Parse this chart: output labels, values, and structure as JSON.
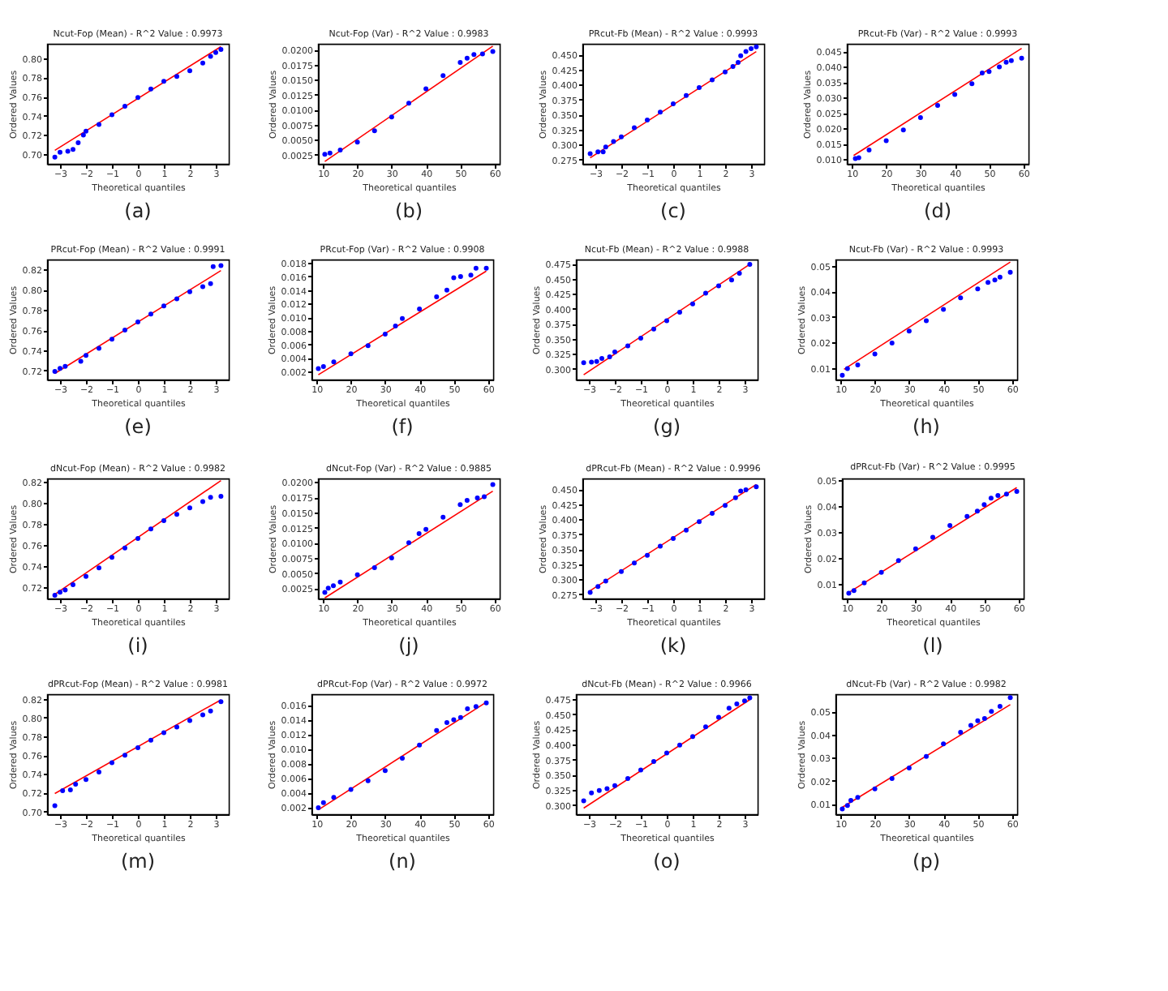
{
  "chart_data": [
    {
      "type": "scatter",
      "title": "Ncut-Fop (Mean)  - R^2 Value : 0.9973",
      "xlabel": "Theoretical quantiles",
      "ylabel": "Ordered Values",
      "annotations": [
        "(a)"
      ],
      "marker": "circle",
      "xlim": [
        -3.5,
        3.5
      ],
      "xticks": [
        {
          "value": -3,
          "label": "−3"
        },
        {
          "value": -2,
          "label": "−2"
        },
        {
          "value": -1,
          "label": "−1"
        },
        0,
        1,
        2,
        3
      ],
      "ylim": [
        0.69,
        0.815
      ],
      "yticks": [
        {
          "value": 0.7,
          "label": "0.70"
        },
        0.72,
        0.74,
        0.76,
        0.78,
        {
          "value": 0.8,
          "label": "0.80"
        }
      ],
      "series": [
        {
          "type": "scatter",
          "color": "#0000ff",
          "x": [
            -3.2,
            -3.0,
            -2.7,
            -2.5,
            -2.3,
            -2.1,
            -2.0,
            -1.5,
            -1.0,
            -0.5,
            0,
            0.5,
            1.0,
            1.5,
            2.0,
            2.5,
            2.8,
            3.0,
            3.2
          ],
          "values": [
            0.697,
            0.702,
            0.703,
            0.705,
            0.712,
            0.72,
            0.724,
            0.731,
            0.741,
            0.75,
            0.759,
            0.768,
            0.776,
            0.781,
            0.787,
            0.795,
            0.802,
            0.806,
            0.809
          ]
        },
        {
          "type": "line",
          "color": "#ff0000",
          "x": [
            -3.2,
            3.2
          ],
          "values": [
            0.704,
            0.812
          ],
          "marker": "none"
        }
      ]
    },
    {
      "type": "scatter",
      "title": "Ncut-Fop (Var)  - R^2 Value : 0.9983",
      "xlabel": "Theoretical quantiles",
      "ylabel": "Ordered Values",
      "annotations": [
        "(b)"
      ],
      "marker": "circle",
      "xlim": [
        8.5,
        61.5
      ],
      "xticks": [
        10,
        20,
        30,
        40,
        50,
        60
      ],
      "ylim": [
        0.001,
        0.021
      ],
      "yticks": [
        0.0025,
        {
          "value": 0.005,
          "label": "0.0050"
        },
        0.0075,
        {
          "value": 0.01,
          "label": "0.0100"
        },
        0.0125,
        {
          "value": 0.015,
          "label": "0.0150"
        },
        0.0175,
        {
          "value": 0.02,
          "label": "0.0200"
        }
      ],
      "series": [
        {
          "type": "scatter",
          "color": "#0000ff",
          "x": [
            10.5,
            12,
            15,
            20,
            25,
            30,
            35,
            40,
            45,
            50,
            52,
            54,
            56.5,
            59.5
          ],
          "values": [
            0.0026,
            0.0028,
            0.0033,
            0.0046,
            0.0065,
            0.0088,
            0.0111,
            0.0135,
            0.0157,
            0.0179,
            0.0186,
            0.0192,
            0.0193,
            0.0197
          ]
        },
        {
          "type": "line",
          "color": "#ff0000",
          "x": [
            10.5,
            59.5
          ],
          "values": [
            0.0014,
            0.0206
          ],
          "marker": "none"
        }
      ]
    },
    {
      "type": "scatter",
      "title": "PRcut-Fb (Mean)  - R^2 Value : 0.9993",
      "xlabel": "Theoretical quantiles",
      "ylabel": "Ordered Values",
      "annotations": [
        "(c)"
      ],
      "marker": "circle",
      "xlim": [
        -3.5,
        3.5
      ],
      "xticks": [
        {
          "value": -3,
          "label": "−3"
        },
        {
          "value": -2,
          "label": "−2"
        },
        {
          "value": -1,
          "label": "−1"
        },
        0,
        1,
        2,
        3
      ],
      "ylim": [
        0.268,
        0.468
      ],
      "yticks": [
        0.275,
        {
          "value": 0.3,
          "label": "0.300"
        },
        0.325,
        {
          "value": 0.35,
          "label": "0.350"
        },
        0.375,
        {
          "value": 0.4,
          "label": "0.400"
        },
        0.425,
        {
          "value": 0.45,
          "label": "0.450"
        }
      ],
      "series": [
        {
          "type": "scatter",
          "color": "#0000ff",
          "x": [
            -3.2,
            -2.9,
            -2.7,
            -2.6,
            -2.3,
            -2.0,
            -1.5,
            -1.0,
            -0.5,
            0,
            0.5,
            1.0,
            1.5,
            2.0,
            2.3,
            2.5,
            2.6,
            2.8,
            3.0,
            3.2
          ],
          "values": [
            0.285,
            0.288,
            0.288,
            0.296,
            0.305,
            0.313,
            0.328,
            0.341,
            0.354,
            0.368,
            0.382,
            0.395,
            0.408,
            0.421,
            0.43,
            0.437,
            0.448,
            0.455,
            0.46,
            0.463
          ]
        },
        {
          "type": "line",
          "color": "#ff0000",
          "x": [
            -3.2,
            3.2
          ],
          "values": [
            0.278,
            0.455
          ],
          "marker": "none"
        }
      ]
    },
    {
      "type": "scatter",
      "title": "PRcut-Fb (Var)  - R^2 Value : 0.9993",
      "xlabel": "Theoretical quantiles",
      "ylabel": "Ordered Values",
      "annotations": [
        "(d)"
      ],
      "marker": "circle",
      "xlim": [
        8.5,
        61.5
      ],
      "xticks": [
        10,
        20,
        30,
        40,
        50,
        60
      ],
      "ylim": [
        0.0085,
        0.0475
      ],
      "yticks": [
        {
          "value": 0.01,
          "label": "0.010"
        },
        0.015,
        {
          "value": 0.02,
          "label": "0.020"
        },
        0.025,
        {
          "value": 0.03,
          "label": "0.030"
        },
        0.035,
        {
          "value": 0.04,
          "label": "0.040"
        },
        0.045
      ],
      "series": [
        {
          "type": "scatter",
          "color": "#0000ff",
          "x": [
            11,
            12,
            15,
            20,
            25,
            30,
            35,
            40,
            45,
            48,
            50,
            53,
            55,
            56.5,
            59.5
          ],
          "values": [
            0.0102,
            0.0105,
            0.013,
            0.016,
            0.0195,
            0.0235,
            0.0275,
            0.031,
            0.0345,
            0.038,
            0.0385,
            0.04,
            0.0415,
            0.042,
            0.0428
          ]
        },
        {
          "type": "line",
          "color": "#ff0000",
          "x": [
            10.5,
            59.5
          ],
          "values": [
            0.0112,
            0.046
          ],
          "marker": "none"
        }
      ]
    },
    {
      "type": "scatter",
      "title": "PRcut-Fop (Mean)  - R^2 Value : 0.9991",
      "xlabel": "Theoretical quantiles",
      "ylabel": "Ordered Values",
      "annotations": [
        "(e)"
      ],
      "marker": "circle",
      "xlim": [
        -3.5,
        3.5
      ],
      "xticks": [
        {
          "value": -3,
          "label": "−3"
        },
        {
          "value": -2,
          "label": "−2"
        },
        {
          "value": -1,
          "label": "−1"
        },
        0,
        1,
        2,
        3
      ],
      "ylim": [
        0.711,
        0.83
      ],
      "yticks": [
        0.72,
        0.74,
        0.76,
        0.78,
        {
          "value": 0.8,
          "label": "0.80"
        },
        0.82
      ],
      "series": [
        {
          "type": "scatter",
          "color": "#0000ff",
          "x": [
            -3.2,
            -3.0,
            -2.8,
            -2.2,
            -2.0,
            -1.5,
            -1.0,
            -0.5,
            0,
            0.5,
            1.0,
            1.5,
            2.0,
            2.5,
            2.8,
            2.9,
            3.2
          ],
          "values": [
            0.719,
            0.722,
            0.724,
            0.729,
            0.735,
            0.742,
            0.751,
            0.76,
            0.768,
            0.776,
            0.784,
            0.791,
            0.798,
            0.803,
            0.806,
            0.823,
            0.824
          ]
        },
        {
          "type": "line",
          "color": "#ff0000",
          "x": [
            -3.2,
            3.2
          ],
          "values": [
            0.717,
            0.819
          ],
          "marker": "none"
        }
      ]
    },
    {
      "type": "scatter",
      "title": "PRcut-Fop (Var)  - R^2 Value : 0.9908",
      "xlabel": "Theoretical quantiles",
      "ylabel": "Ordered Values",
      "annotations": [
        "(f)"
      ],
      "marker": "circle",
      "xlim": [
        8.5,
        61.5
      ],
      "xticks": [
        10,
        20,
        30,
        40,
        50,
        60
      ],
      "ylim": [
        0.0008,
        0.0185
      ],
      "yticks": [
        0.002,
        0.004,
        0.006,
        0.008,
        {
          "value": 0.01,
          "label": "0.010"
        },
        0.012,
        0.014,
        0.016,
        0.018
      ],
      "series": [
        {
          "type": "scatter",
          "color": "#0000ff",
          "x": [
            10.5,
            12,
            15,
            20,
            25,
            30,
            33,
            35,
            40,
            45,
            48,
            50,
            52,
            55,
            56.5,
            59.5
          ],
          "values": [
            0.0024,
            0.0027,
            0.0034,
            0.0046,
            0.0058,
            0.0075,
            0.0087,
            0.0098,
            0.0112,
            0.013,
            0.014,
            0.0158,
            0.016,
            0.0162,
            0.0172,
            0.0172
          ]
        },
        {
          "type": "line",
          "color": "#ff0000",
          "x": [
            10.5,
            59.5
          ],
          "values": [
            0.0015,
            0.0168
          ],
          "marker": "none"
        }
      ]
    },
    {
      "type": "scatter",
      "title": "Ncut-Fb (Mean)  - R^2 Value : 0.9988",
      "xlabel": "Theoretical quantiles",
      "ylabel": "Ordered Values",
      "annotations": [
        "(g)"
      ],
      "marker": "circle",
      "xlim": [
        -3.5,
        3.5
      ],
      "xticks": [
        {
          "value": -3,
          "label": "−3"
        },
        {
          "value": -2,
          "label": "−2"
        },
        {
          "value": -1,
          "label": "−1"
        },
        0,
        1,
        2,
        3
      ],
      "ylim": [
        0.282,
        0.482
      ],
      "yticks": [
        {
          "value": 0.3,
          "label": "0.300"
        },
        0.325,
        {
          "value": 0.35,
          "label": "0.350"
        },
        0.375,
        {
          "value": 0.4,
          "label": "0.400"
        },
        0.425,
        {
          "value": 0.45,
          "label": "0.450"
        },
        0.475
      ],
      "series": [
        {
          "type": "scatter",
          "color": "#0000ff",
          "x": [
            -3.2,
            -2.9,
            -2.7,
            -2.5,
            -2.2,
            -2.0,
            -1.5,
            -1.0,
            -0.5,
            0,
            0.5,
            1.0,
            1.5,
            2.0,
            2.5,
            2.8,
            3.2
          ],
          "values": [
            0.31,
            0.311,
            0.312,
            0.317,
            0.32,
            0.328,
            0.338,
            0.351,
            0.366,
            0.38,
            0.394,
            0.408,
            0.426,
            0.438,
            0.448,
            0.459,
            0.474
          ]
        },
        {
          "type": "line",
          "color": "#ff0000",
          "x": [
            -3.2,
            3.2
          ],
          "values": [
            0.29,
            0.474
          ],
          "marker": "none"
        }
      ]
    },
    {
      "type": "scatter",
      "title": "Ncut-Fb (Var)  - R^2 Value : 0.9993",
      "xlabel": "Theoretical quantiles",
      "ylabel": "Ordered Values",
      "annotations": [
        "(h)"
      ],
      "marker": "circle",
      "xlim": [
        8.5,
        61.5
      ],
      "xticks": [
        10,
        20,
        30,
        40,
        50,
        60
      ],
      "ylim": [
        0.0055,
        0.0525
      ],
      "yticks": [
        0.01,
        0.02,
        0.03,
        0.04,
        0.05
      ],
      "series": [
        {
          "type": "scatter",
          "color": "#0000ff",
          "x": [
            10.5,
            12,
            15,
            20,
            25,
            30,
            35,
            40,
            45,
            50,
            53,
            55,
            56.5,
            59.5
          ],
          "values": [
            0.0072,
            0.0098,
            0.0112,
            0.0155,
            0.0198,
            0.0245,
            0.0285,
            0.033,
            0.0375,
            0.041,
            0.0435,
            0.0445,
            0.0456,
            0.0475
          ]
        },
        {
          "type": "line",
          "color": "#ff0000",
          "x": [
            11,
            59.5
          ],
          "values": [
            0.0095,
            0.0515
          ],
          "marker": "none"
        }
      ]
    },
    {
      "type": "scatter",
      "title": "dNcut-Fop (Mean)  - R^2 Value : 0.9982",
      "xlabel": "Theoretical quantiles",
      "ylabel": "Ordered Values",
      "annotations": [
        "(i)"
      ],
      "marker": "circle",
      "xlim": [
        -3.5,
        3.5
      ],
      "xticks": [
        {
          "value": -3,
          "label": "−3"
        },
        {
          "value": -2,
          "label": "−2"
        },
        {
          "value": -1,
          "label": "−1"
        },
        0,
        1,
        2,
        3
      ],
      "ylim": [
        0.709,
        0.823
      ],
      "yticks": [
        0.72,
        0.74,
        0.76,
        0.78,
        {
          "value": 0.8,
          "label": "0.80"
        },
        0.82
      ],
      "series": [
        {
          "type": "scatter",
          "color": "#0000ff",
          "x": [
            -3.2,
            -3.0,
            -2.8,
            -2.5,
            -2.0,
            -1.5,
            -1.0,
            -0.5,
            0,
            0.5,
            1.0,
            1.5,
            2.0,
            2.5,
            2.8,
            3.2
          ],
          "values": [
            0.712,
            0.715,
            0.717,
            0.722,
            0.73,
            0.738,
            0.748,
            0.757,
            0.766,
            0.775,
            0.783,
            0.789,
            0.795,
            0.801,
            0.805,
            0.806
          ]
        },
        {
          "type": "line",
          "color": "#ff0000",
          "x": [
            -3.2,
            3.2
          ],
          "values": [
            0.713,
            0.821
          ],
          "marker": "none"
        }
      ]
    },
    {
      "type": "scatter",
      "title": "dNcut-Fop (Var)  - R^2 Value : 0.9885",
      "xlabel": "Theoretical quantiles",
      "ylabel": "Ordered Values",
      "annotations": [
        "(j)"
      ],
      "marker": "circle",
      "xlim": [
        8.5,
        61.5
      ],
      "xticks": [
        10,
        20,
        30,
        40,
        50,
        60
      ],
      "ylim": [
        0.0008,
        0.0206
      ],
      "yticks": [
        0.0025,
        {
          "value": 0.005,
          "label": "0.0050"
        },
        0.0075,
        {
          "value": 0.01,
          "label": "0.0100"
        },
        0.0125,
        {
          "value": 0.015,
          "label": "0.0150"
        },
        0.0175,
        {
          "value": 0.02,
          "label": "0.0200"
        }
      ],
      "series": [
        {
          "type": "scatter",
          "color": "#0000ff",
          "x": [
            10.5,
            11.5,
            13,
            15,
            20,
            25,
            30,
            35,
            38,
            40,
            45,
            50,
            52,
            55,
            57,
            59.5
          ],
          "values": [
            0.0018,
            0.0025,
            0.0029,
            0.0035,
            0.0047,
            0.0059,
            0.0075,
            0.01,
            0.0115,
            0.0122,
            0.0142,
            0.0163,
            0.017,
            0.0174,
            0.0176,
            0.0196
          ]
        },
        {
          "type": "line",
          "color": "#ff0000",
          "x": [
            10.5,
            59.5
          ],
          "values": [
            0.0009,
            0.0185
          ],
          "marker": "none"
        }
      ]
    },
    {
      "type": "scatter",
      "title": "dPRcut-Fb (Mean)  - R^2 Value : 0.9996",
      "xlabel": "Theoretical quantiles",
      "ylabel": "Ordered Values",
      "annotations": [
        "(k)"
      ],
      "marker": "circle",
      "xlim": [
        -3.5,
        3.5
      ],
      "xticks": [
        {
          "value": -3,
          "label": "−3"
        },
        {
          "value": -2,
          "label": "−2"
        },
        {
          "value": -1,
          "label": "−1"
        },
        0,
        1,
        2,
        3
      ],
      "ylim": [
        0.268,
        0.468
      ],
      "yticks": [
        0.275,
        {
          "value": 0.3,
          "label": "0.300"
        },
        0.325,
        {
          "value": 0.35,
          "label": "0.350"
        },
        0.375,
        {
          "value": 0.4,
          "label": "0.400"
        },
        0.425,
        {
          "value": 0.45,
          "label": "0.450"
        }
      ],
      "series": [
        {
          "type": "scatter",
          "color": "#0000ff",
          "x": [
            -3.2,
            -2.9,
            -2.6,
            -2.0,
            -1.5,
            -1.0,
            -0.5,
            0,
            0.5,
            1.0,
            1.5,
            2.0,
            2.4,
            2.6,
            2.8,
            3.2
          ],
          "values": [
            0.278,
            0.288,
            0.297,
            0.313,
            0.327,
            0.34,
            0.355,
            0.368,
            0.382,
            0.396,
            0.41,
            0.423,
            0.436,
            0.447,
            0.449,
            0.454
          ]
        },
        {
          "type": "line",
          "color": "#ff0000",
          "x": [
            -3.2,
            3.2
          ],
          "values": [
            0.281,
            0.458
          ],
          "marker": "none"
        }
      ]
    },
    {
      "type": "scatter",
      "title": "dPRcut-Fb (Var)  - R^2 Value : 0.9995",
      "xlabel": "Theoretical quantiles",
      "ylabel": "Ordered Values",
      "annotations": [
        "(l)"
      ],
      "marker": "circle",
      "xlim": [
        8.5,
        61.5
      ],
      "xticks": [
        10,
        20,
        30,
        40,
        50,
        60
      ],
      "ylim": [
        0.0045,
        0.0505
      ],
      "yticks": [
        0.01,
        0.02,
        0.03,
        0.04,
        0.05
      ],
      "series": [
        {
          "type": "scatter",
          "color": "#0000ff",
          "x": [
            10.5,
            12,
            15,
            20,
            25,
            30,
            35,
            40,
            45,
            48,
            50,
            52,
            54,
            56.5,
            59.5
          ],
          "values": [
            0.0065,
            0.0075,
            0.0105,
            0.0145,
            0.019,
            0.0235,
            0.028,
            0.0325,
            0.036,
            0.038,
            0.0405,
            0.043,
            0.044,
            0.0445,
            0.0455
          ]
        },
        {
          "type": "line",
          "color": "#ff0000",
          "x": [
            10.5,
            59.5
          ],
          "values": [
            0.0068,
            0.047
          ],
          "marker": "none"
        }
      ]
    },
    {
      "type": "scatter",
      "title": "dPRcut-Fop (Mean)  - R^2 Value : 0.9981",
      "xlabel": "Theoretical quantiles",
      "ylabel": "Ordered Values",
      "annotations": [
        "(m)"
      ],
      "marker": "circle",
      "xlim": [
        -3.5,
        3.5
      ],
      "xticks": [
        {
          "value": -3,
          "label": "−3"
        },
        {
          "value": -2,
          "label": "−2"
        },
        {
          "value": -1,
          "label": "−1"
        },
        0,
        1,
        2,
        3
      ],
      "ylim": [
        0.697,
        0.825
      ],
      "yticks": [
        {
          "value": 0.7,
          "label": "0.70"
        },
        0.72,
        0.74,
        0.76,
        0.78,
        {
          "value": 0.8,
          "label": "0.80"
        },
        0.82
      ],
      "series": [
        {
          "type": "scatter",
          "color": "#0000ff",
          "x": [
            -3.2,
            -2.9,
            -2.6,
            -2.4,
            -2.0,
            -1.5,
            -1.0,
            -0.5,
            0,
            0.5,
            1.0,
            1.5,
            2.0,
            2.5,
            2.8,
            3.2
          ],
          "values": [
            0.706,
            0.722,
            0.723,
            0.729,
            0.734,
            0.742,
            0.752,
            0.76,
            0.768,
            0.776,
            0.784,
            0.79,
            0.797,
            0.803,
            0.807,
            0.817
          ]
        },
        {
          "type": "line",
          "color": "#ff0000",
          "x": [
            -3.2,
            3.2
          ],
          "values": [
            0.719,
            0.819
          ],
          "marker": "none"
        }
      ]
    },
    {
      "type": "scatter",
      "title": "dPRcut-Fop (Var)  - R^2 Value : 0.9972",
      "xlabel": "Theoretical quantiles",
      "ylabel": "Ordered Values",
      "annotations": [
        "(n)"
      ],
      "marker": "circle",
      "xlim": [
        8.5,
        61.5
      ],
      "xticks": [
        10,
        20,
        30,
        40,
        50,
        60
      ],
      "ylim": [
        0.001,
        0.0175
      ],
      "yticks": [
        0.002,
        0.004,
        0.006,
        0.008,
        {
          "value": 0.01,
          "label": "0.010"
        },
        0.012,
        0.014,
        0.016
      ],
      "series": [
        {
          "type": "scatter",
          "color": "#0000ff",
          "x": [
            10.5,
            12,
            15,
            20,
            25,
            30,
            35,
            40,
            45,
            48,
            50,
            52,
            54,
            56.5,
            59.5
          ],
          "values": [
            0.0019,
            0.0026,
            0.0033,
            0.0044,
            0.0056,
            0.007,
            0.0087,
            0.0105,
            0.0125,
            0.0136,
            0.014,
            0.0143,
            0.0155,
            0.0158,
            0.0163
          ]
        },
        {
          "type": "line",
          "color": "#ff0000",
          "x": [
            10.5,
            59.5
          ],
          "values": [
            0.0016,
            0.0164
          ],
          "marker": "none"
        }
      ]
    },
    {
      "type": "scatter",
      "title": "dNcut-Fb (Mean)  - R^2 Value : 0.9966",
      "xlabel": "Theoretical quantiles",
      "ylabel": "Ordered Values",
      "annotations": [
        "(o)"
      ],
      "marker": "circle",
      "xlim": [
        -3.5,
        3.5
      ],
      "xticks": [
        {
          "value": -3,
          "label": "−3"
        },
        {
          "value": -2,
          "label": "−2"
        },
        {
          "value": -1,
          "label": "−1"
        },
        0,
        1,
        2,
        3
      ],
      "ylim": [
        0.285,
        0.483
      ],
      "yticks": [
        {
          "value": 0.3,
          "label": "0.300"
        },
        0.325,
        {
          "value": 0.35,
          "label": "0.350"
        },
        0.375,
        {
          "value": 0.4,
          "label": "0.400"
        },
        0.425,
        {
          "value": 0.45,
          "label": "0.450"
        },
        0.475
      ],
      "series": [
        {
          "type": "scatter",
          "color": "#0000ff",
          "x": [
            -3.2,
            -2.9,
            -2.6,
            -2.3,
            -2.0,
            -1.5,
            -1.0,
            -0.5,
            0,
            0.5,
            1.0,
            1.5,
            2.0,
            2.4,
            2.7,
            3.0,
            3.2
          ],
          "values": [
            0.307,
            0.32,
            0.324,
            0.327,
            0.332,
            0.344,
            0.358,
            0.372,
            0.386,
            0.399,
            0.413,
            0.429,
            0.445,
            0.46,
            0.467,
            0.472,
            0.477
          ]
        },
        {
          "type": "line",
          "color": "#ff0000",
          "x": [
            -3.2,
            3.2
          ],
          "values": [
            0.295,
            0.474
          ],
          "marker": "none"
        }
      ]
    },
    {
      "type": "scatter",
      "title": "dNcut-Fb (Var)  - R^2 Value : 0.9982",
      "xlabel": "Theoretical quantiles",
      "ylabel": "Ordered Values",
      "annotations": [
        "(p)"
      ],
      "marker": "circle",
      "xlim": [
        8.5,
        61.5
      ],
      "xticks": [
        10,
        20,
        30,
        40,
        50,
        60
      ],
      "ylim": [
        0.0055,
        0.0575
      ],
      "yticks": [
        0.01,
        0.02,
        0.03,
        0.04,
        0.05
      ],
      "series": [
        {
          "type": "scatter",
          "color": "#0000ff",
          "x": [
            10.5,
            12,
            13,
            15,
            20,
            25,
            30,
            35,
            40,
            45,
            48,
            50,
            52,
            54,
            56.5,
            59.5
          ],
          "values": [
            0.0078,
            0.0093,
            0.0115,
            0.0128,
            0.0165,
            0.021,
            0.0255,
            0.0305,
            0.036,
            0.041,
            0.044,
            0.046,
            0.047,
            0.05,
            0.0522,
            0.056
          ]
        },
        {
          "type": "line",
          "color": "#ff0000",
          "x": [
            10.5,
            59.5
          ],
          "values": [
            0.0085,
            0.053
          ],
          "marker": "none"
        }
      ]
    }
  ]
}
